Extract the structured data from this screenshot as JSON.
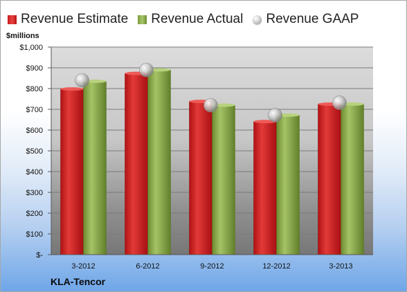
{
  "units_label": "$millions",
  "company": "KLA-Tencor",
  "legend": [
    {
      "label": "Revenue Estimate",
      "swatch": "sw-est"
    },
    {
      "label": "Revenue Actual",
      "swatch": "sw-act"
    },
    {
      "label": "Revenue GAAP",
      "swatch": "sw-gaap"
    }
  ],
  "colors": {
    "estimate": "#d42a2a",
    "actual": "#95b654",
    "gaap": "#c8c8c8"
  },
  "chart_data": {
    "type": "bar",
    "title": "",
    "xlabel": "",
    "ylabel": "$millions",
    "categories": [
      "3-2012",
      "6-2012",
      "9-2012",
      "12-2012",
      "3-2013"
    ],
    "series": [
      {
        "name": "Revenue Estimate",
        "values": [
          798,
          873,
          738,
          641,
          725
        ]
      },
      {
        "name": "Revenue Actual",
        "values": [
          835,
          890,
          720,
          672,
          725
        ]
      },
      {
        "name": "Revenue GAAP",
        "values": [
          840,
          890,
          720,
          672,
          732
        ]
      }
    ],
    "ylim": [
      0,
      1000
    ],
    "y_ticks": [
      0,
      100,
      200,
      300,
      400,
      500,
      600,
      700,
      800,
      900,
      1000
    ],
    "y_tick_labels": [
      "$-",
      "$100",
      "$200",
      "$300",
      "$400",
      "$500",
      "$600",
      "$700",
      "$800",
      "$900",
      "$1,000"
    ],
    "grid": true,
    "legend_position": "top"
  }
}
